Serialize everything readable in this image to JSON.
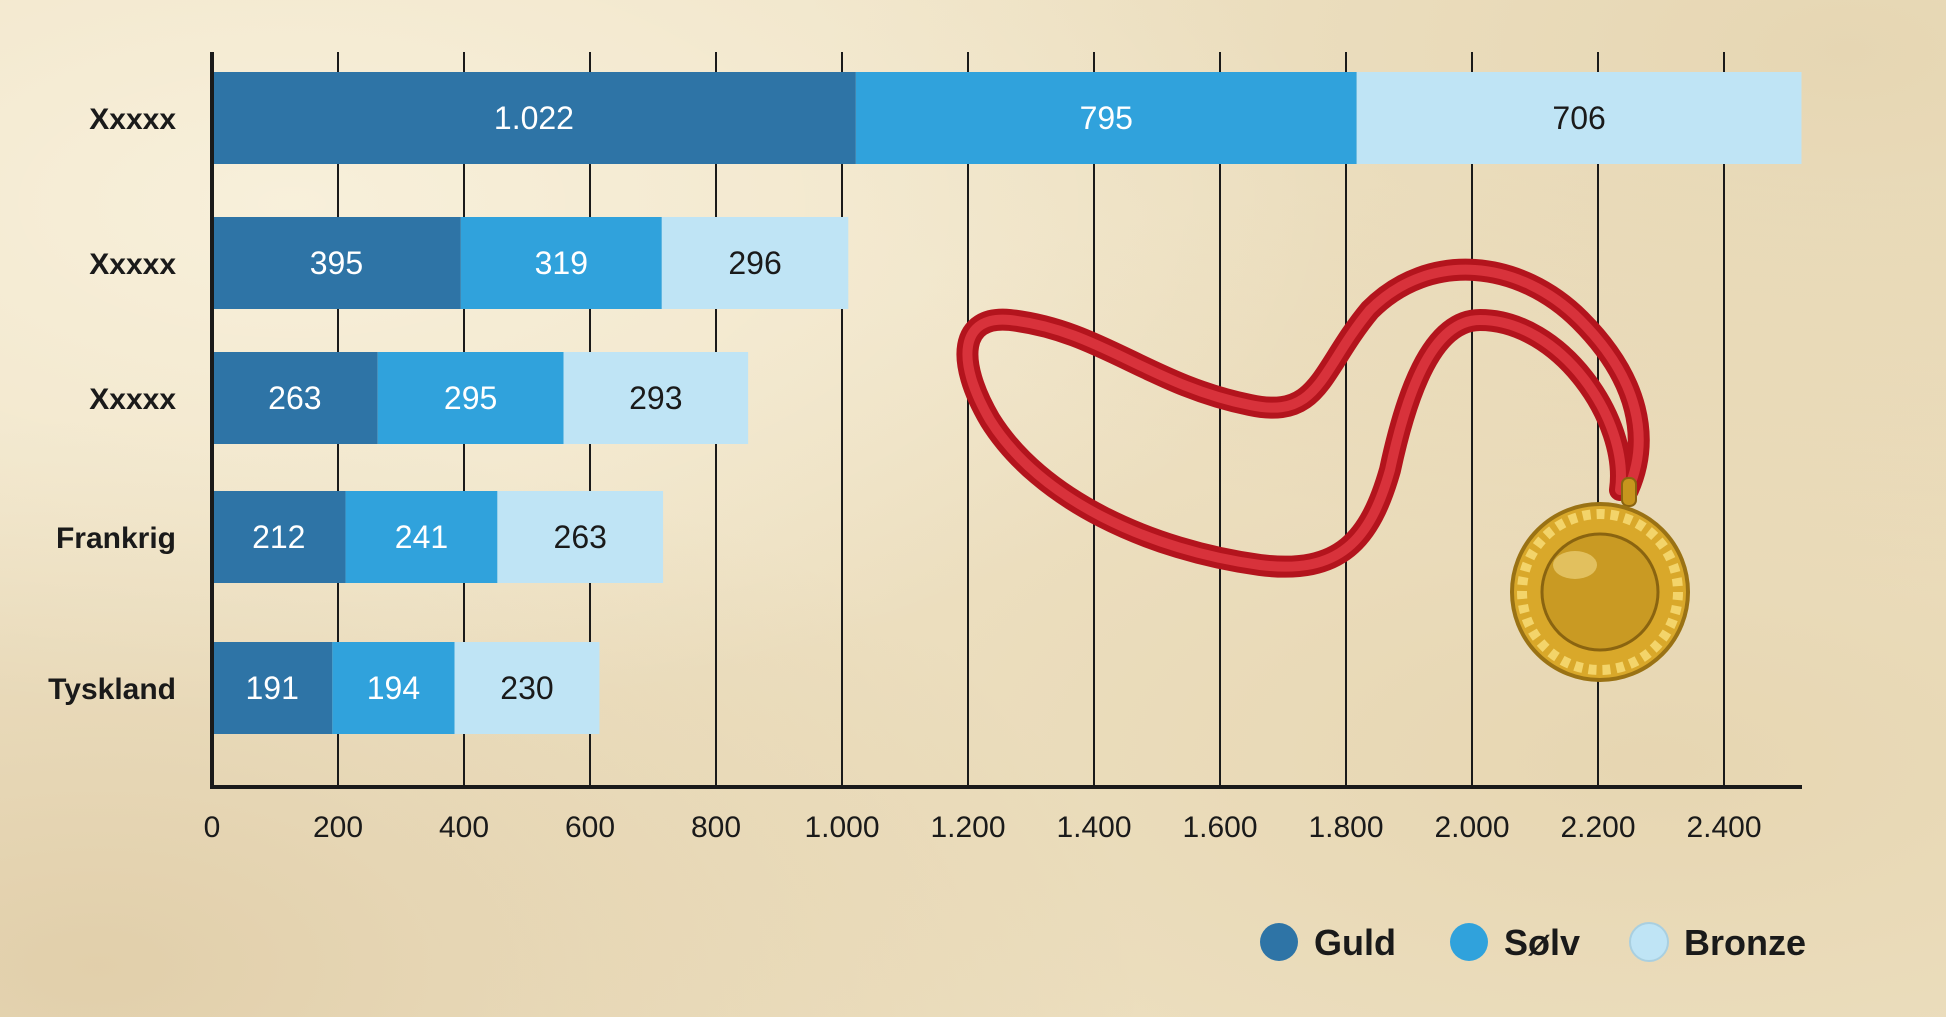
{
  "chart_data": {
    "type": "bar",
    "orientation": "horizontal",
    "stacked": true,
    "categories": [
      "Xxxxx",
      "Xxxxx",
      "Xxxxx",
      "Frankrig",
      "Tyskland"
    ],
    "series": [
      {
        "name": "Guld",
        "values": [
          1022,
          395,
          263,
          212,
          191
        ]
      },
      {
        "name": "Sølv",
        "values": [
          795,
          319,
          295,
          241,
          194
        ]
      },
      {
        "name": "Bronze",
        "values": [
          706,
          296,
          293,
          263,
          230
        ]
      }
    ],
    "value_labels": [
      [
        "1.022",
        "395",
        "263",
        "212",
        "191"
      ],
      [
        "795",
        "319",
        "295",
        "241",
        "194"
      ],
      [
        "706",
        "296",
        "293",
        "263",
        "230"
      ]
    ],
    "xlim": [
      0,
      2500
    ],
    "xticks": [
      0,
      200,
      400,
      600,
      800,
      1000,
      1200,
      1400,
      1600,
      1800,
      2000,
      2200,
      2400
    ],
    "xtick_labels": [
      "0",
      "200",
      "400",
      "600",
      "800",
      "1.000",
      "1.200",
      "1.400",
      "1.600",
      "1.800",
      "2.000",
      "2.200",
      "2.400"
    ],
    "grid": "vertical",
    "legend_position": "bottom-right",
    "title": "",
    "xlabel": "",
    "ylabel": ""
  },
  "colors": {
    "Guld": "#2e74a6",
    "Sølv": "#30a2dc",
    "Bronze": "#bfe4f5",
    "axis": "#1a1a1a",
    "grid": "#1a1a1a",
    "label_dark_bg": "#ffffff",
    "label_light_bg": "#1a1a1a"
  },
  "decoration": {
    "image": "gold-medal-with-red-ribbon"
  }
}
